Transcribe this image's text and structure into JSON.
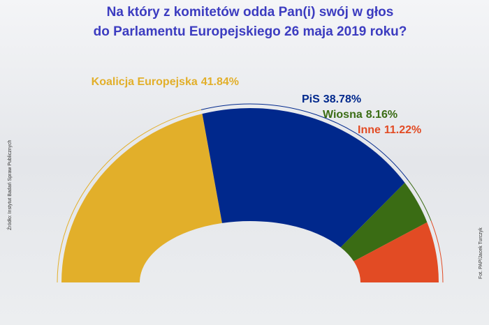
{
  "chart_data": {
    "type": "semi-donut",
    "title": [
      "Na który z komitetów odda Pan(i) swój w głos",
      "do Parlamentu Europejskiego 26 maja 2019 roku?"
    ],
    "categories": [
      "Koalicja Europejska",
      "PiS",
      "Wiosna",
      "Inne"
    ],
    "values": [
      41.84,
      38.78,
      8.16,
      11.22
    ],
    "value_labels": [
      "41.84%",
      "38.78%",
      "8.16%",
      "11.22%"
    ],
    "colors": [
      "#e2af2a",
      "#00288c",
      "#3a6c14",
      "#e24b24"
    ],
    "source": "Źródło: Instytut Badań Spraw Publicznych",
    "credit": "Fot. PAP/Jacek Turczyk"
  }
}
